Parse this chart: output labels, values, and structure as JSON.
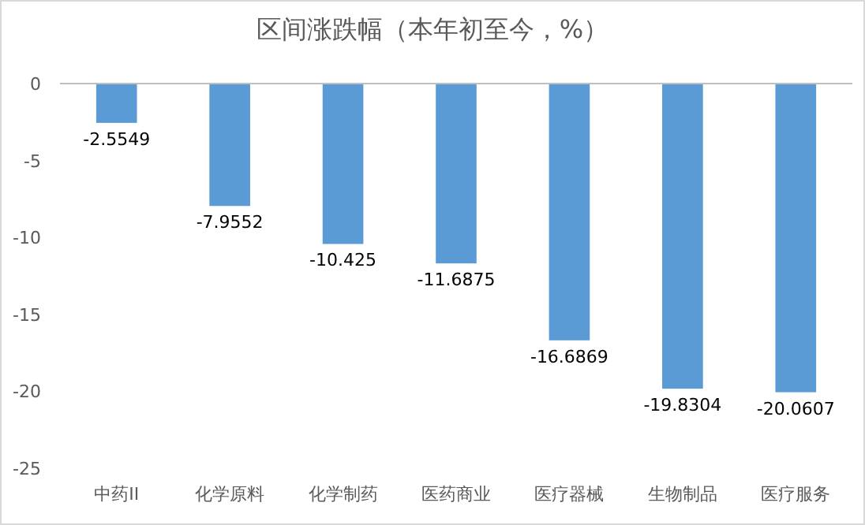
{
  "chart_data": {
    "type": "bar",
    "title": "区间涨跌幅（本年初至今，%）",
    "categories": [
      "中药II",
      "化学原料",
      "化学制药",
      "医药商业",
      "医疗器械",
      "生物制品",
      "医疗服务"
    ],
    "values": [
      -2.5549,
      -7.9552,
      -10.425,
      -11.6875,
      -16.6869,
      -19.8304,
      -20.0607
    ],
    "color": "#5b9bd5",
    "ylim": [
      -25,
      0
    ],
    "yticks": [
      -25,
      -20,
      -15,
      -10,
      -5,
      0
    ],
    "data_labels": true
  }
}
